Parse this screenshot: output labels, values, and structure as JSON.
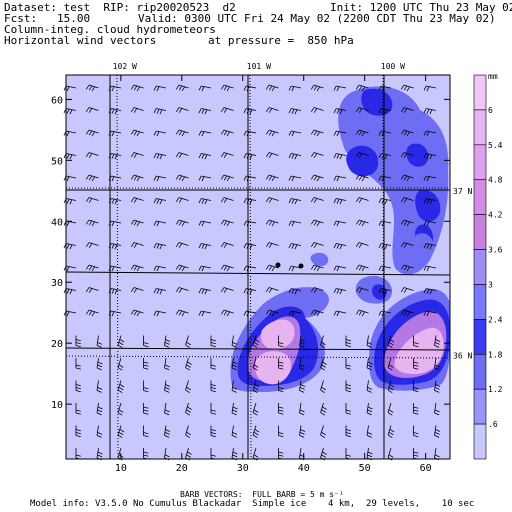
{
  "header": {
    "dataset": "Dataset: test  RIP: rip20020523  d2",
    "init": "Init: 1200 UTC Thu 23 May 02",
    "fcst": "Fcst:   15.00",
    "valid": "Valid: 0300 UTC Fri 24 May 02 (2200 CDT Thu 23 May 02)",
    "field1": "Column-integ. cloud hydrometeors",
    "field2": "Horizontal wind vectors",
    "pressure": "at pressure =  850 hPa"
  },
  "map": {
    "x_ticks": [
      10,
      20,
      30,
      40,
      50,
      60
    ],
    "y_ticks": [
      10,
      20,
      30,
      40,
      50,
      60
    ],
    "lon_labels": [
      {
        "text": "102 W",
        "grid_x": 9
      },
      {
        "text": "101 W",
        "grid_x": 31
      },
      {
        "text": "100 W",
        "grid_x": 53
      }
    ],
    "lat_labels": [
      {
        "text": "37 N",
        "grid_y": 45
      },
      {
        "text": "36 N",
        "grid_y": 18
      }
    ],
    "colors": {
      "background": "#c8c8ff",
      "contour_mid": "#6e6ef5",
      "contour_dark": "#2828e6",
      "contour_high": "#e6b4f0",
      "contour_top": "#f5d2fa",
      "county_lines": "#000000"
    }
  },
  "colorbar": {
    "unit": "mm",
    "labels": [
      "6",
      "5.4",
      "4.8",
      "4.2",
      "3.6",
      "3",
      "2.4",
      "1.8",
      "1.2",
      ".6"
    ],
    "colors": [
      "#f0c8f5",
      "#e6b4f0",
      "#dca0ec",
      "#d28ce6",
      "#c882e0",
      "#a08ef0",
      "#7878ff",
      "#3c3cf0",
      "#6e6ef5",
      "#9696fa",
      "#c8c8ff"
    ]
  },
  "footer": {
    "barb": "BARB VECTORS:  FULL BARB = 5 m s⁻¹",
    "model": "Model info: V3.5.0 No Cumulus Blackadar  Simple ice    4 km,  29 levels,    10 sec"
  }
}
